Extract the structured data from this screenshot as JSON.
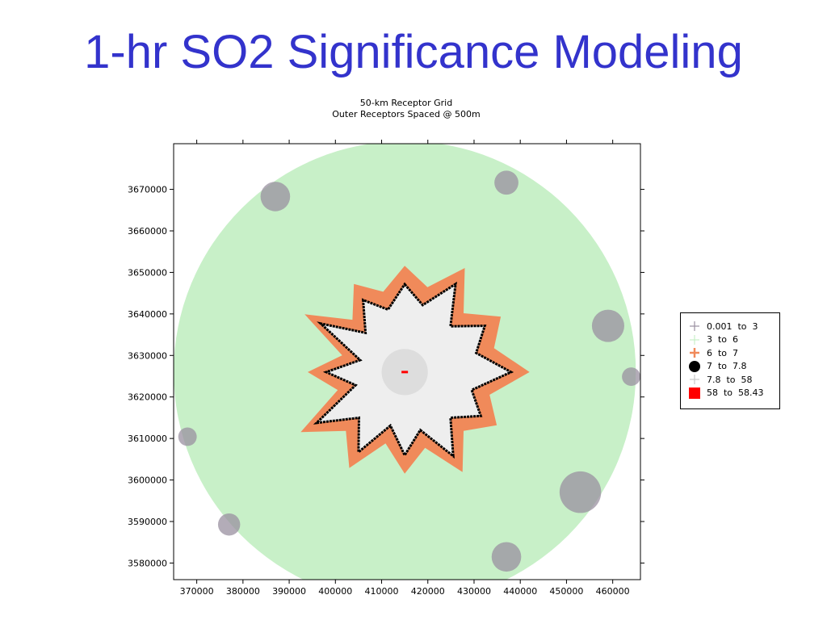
{
  "slide": {
    "title": "1-hr SO2 Significance Modeling"
  },
  "chart_data": {
    "type": "scatter",
    "title": "50-km Receptor Grid",
    "subtitle": "Outer Receptors Spaced @ 500m",
    "xlim": [
      365000,
      466000
    ],
    "ylim": [
      3576000,
      3681000
    ],
    "x_ticks": [
      "370000",
      "380000",
      "390000",
      "400000",
      "410000",
      "420000",
      "430000",
      "440000",
      "450000",
      "460000"
    ],
    "y_ticks": [
      "3670000",
      "3660000",
      "3650000",
      "3640000",
      "3630000",
      "3620000",
      "3610000",
      "3600000",
      "3590000",
      "3580000"
    ],
    "grid": false,
    "legend_position": "right",
    "center": [
      415000,
      3626000
    ],
    "outer_radius_m": 50000,
    "legend": [
      {
        "label": "0.001  to  3",
        "color": "#9a90a0",
        "marker": "plus"
      },
      {
        "label": "3  to  6",
        "color": "#c8f0c8",
        "marker": "plus"
      },
      {
        "label": "6  to  7",
        "color": "#f08a5a",
        "marker": "plus"
      },
      {
        "label": "7  to  7.8",
        "color": "#000000",
        "marker": "circle"
      },
      {
        "label": "7.8  to  58",
        "color": "#c8c8c8",
        "marker": "plus"
      },
      {
        "label": "58  to  58.43",
        "color": "#ff0000",
        "marker": "square"
      }
    ],
    "contours": {
      "contour_6_radii_km": [
        23,
        19,
        26,
        18,
        24,
        20,
        27,
        19,
        23,
        18,
        25,
        17,
        22,
        16,
        24,
        18,
        26,
        15,
        21,
        14,
        25,
        16,
        22,
        18
      ],
      "contour_7_radii_km": [
        19,
        15,
        22,
        14,
        20,
        16,
        23,
        15,
        19,
        14,
        21,
        13,
        18,
        12,
        20,
        14,
        22,
        11,
        17,
        10,
        21,
        12,
        18,
        14
      ],
      "inner_zone_radius_km": 5
    },
    "max_receptor": {
      "x": 415000,
      "y": 3626000,
      "range": "58  to  58.43"
    }
  }
}
